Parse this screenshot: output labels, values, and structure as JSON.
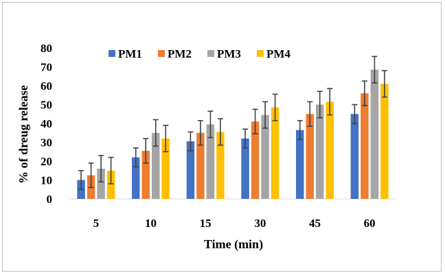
{
  "chart_data": {
    "type": "bar",
    "title": "",
    "xlabel": "Time (min)",
    "ylabel": "% of dreug release",
    "categories": [
      "5",
      "10",
      "15",
      "30",
      "45",
      "60"
    ],
    "ylim": [
      0,
      80
    ],
    "yticks": [
      0,
      10,
      20,
      30,
      40,
      50,
      60,
      70,
      80
    ],
    "grid": false,
    "legend_position": "top",
    "series": [
      {
        "name": "PM1",
        "color": "#4472C4",
        "values": [
          10,
          22,
          30.5,
          32,
          36.5,
          45
        ],
        "errors": [
          5,
          5,
          5,
          5,
          5,
          5
        ]
      },
      {
        "name": "PM2",
        "color": "#ED7D31",
        "values": [
          12.5,
          25.5,
          35,
          41,
          45,
          56
        ],
        "errors": [
          6.5,
          6.5,
          6.5,
          6.5,
          6.5,
          6.5
        ]
      },
      {
        "name": "PM3",
        "color": "#A5A5A5",
        "values": [
          16,
          35,
          39.5,
          44.5,
          50,
          68.5
        ],
        "errors": [
          7,
          7,
          7,
          7,
          7,
          7
        ]
      },
      {
        "name": "PM4",
        "color": "#FFC000",
        "values": [
          15,
          32,
          35.5,
          48.5,
          51.5,
          61
        ],
        "errors": [
          7,
          7,
          7,
          7,
          7,
          7
        ]
      }
    ]
  }
}
